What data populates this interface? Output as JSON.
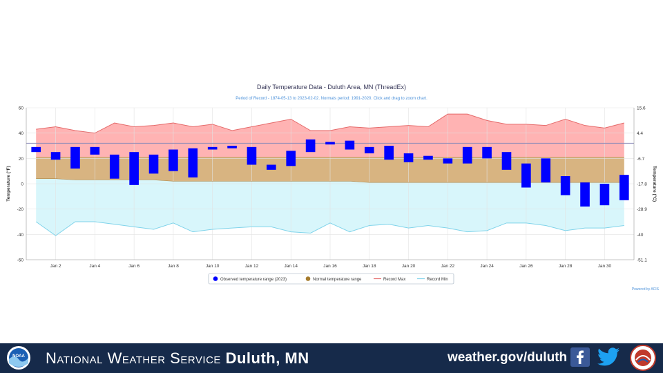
{
  "colors": {
    "observed": "#0000ff",
    "normal_fill": "#d8b481",
    "record_max_fill": "#ffb3b3",
    "record_max_line": "#e56a6a",
    "record_min_fill": "#d8f6fb",
    "record_min_line": "#7fd3ea",
    "normal_marker": "#a67c2e",
    "footer_bg": "#162a4a"
  },
  "chart_data": {
    "type": "bar",
    "title": "Daily Temperature Data - Duluth Area, MN (ThreadEx)",
    "subtitle": "Period of Record - 1874-05-13 to 2023-02-02. Normals period: 1991-2020. Click and drag to zoom chart.",
    "ylabel": "Temperature (°F)",
    "ylabel_right": "Temperature (°C)",
    "ylim": [
      -60,
      60
    ],
    "y_ticks": [
      60,
      40,
      20,
      0,
      -20,
      -40,
      -60
    ],
    "y_ticks_right": [
      "15.6",
      "4.4",
      "-6.7",
      "-17.8",
      "-28.9",
      "-40",
      "-51.1"
    ],
    "x_ticks": [
      "Jan 2",
      "Jan 4",
      "Jan 6",
      "Jan 8",
      "Jan 10",
      "Jan 12",
      "Jan 14",
      "Jan 16",
      "Jan 18",
      "Jan 20",
      "Jan 22",
      "Jan 24",
      "Jan 26",
      "Jan 28",
      "Jan 30"
    ],
    "x_tick_days": [
      2,
      4,
      6,
      8,
      10,
      12,
      14,
      16,
      18,
      20,
      22,
      24,
      26,
      28,
      30
    ],
    "days": [
      1,
      2,
      3,
      4,
      5,
      6,
      7,
      8,
      9,
      10,
      11,
      12,
      13,
      14,
      15,
      16,
      17,
      18,
      19,
      20,
      21,
      22,
      23,
      24,
      25,
      26,
      27,
      28,
      29,
      30,
      31
    ],
    "observed_high": [
      29,
      25,
      29,
      29,
      23,
      25,
      23,
      27,
      28,
      29,
      30,
      29,
      15,
      26,
      35,
      33,
      34,
      29,
      30,
      24,
      22,
      20,
      29,
      29,
      25,
      16,
      20,
      6,
      1,
      0,
      7
    ],
    "observed_low": [
      25,
      19,
      12,
      23,
      4,
      -1,
      8,
      10,
      5,
      27,
      28,
      15,
      11,
      14,
      25,
      31,
      27,
      24,
      19,
      17,
      19,
      16,
      16,
      20,
      11,
      -3,
      1,
      -9,
      -18,
      -17,
      -13
    ],
    "normal_high": [
      21,
      21,
      21,
      21,
      21,
      21,
      21,
      21,
      21,
      21,
      21,
      21,
      21,
      21,
      21,
      21,
      21,
      21,
      21,
      21,
      21,
      21,
      21,
      21,
      21,
      21,
      21,
      21,
      21,
      21,
      21
    ],
    "normal_low": [
      4,
      4,
      3,
      3,
      3,
      3,
      3,
      2,
      2,
      2,
      2,
      2,
      2,
      2,
      2,
      2,
      2,
      1,
      1,
      1,
      1,
      1,
      1,
      1,
      1,
      1,
      1,
      1,
      1,
      1,
      1
    ],
    "record_max": [
      43,
      45,
      42,
      40,
      48,
      45,
      46,
      48,
      45,
      47,
      42,
      45,
      48,
      51,
      42,
      42,
      45,
      44,
      45,
      46,
      45,
      55,
      55,
      50,
      47,
      47,
      46,
      51,
      46,
      44,
      48
    ],
    "record_min": [
      -30,
      -41,
      -30,
      -30,
      -32,
      -34,
      -36,
      -31,
      -38,
      -36,
      -35,
      -34,
      -34,
      -38,
      -39,
      -31,
      -38,
      -33,
      -32,
      -35,
      -33,
      -35,
      -38,
      -37,
      -31,
      -31,
      -33,
      -37,
      -35,
      -35,
      -33
    ],
    "legend": [
      {
        "label": "Observed temperature range (2023)",
        "color": "#0000ff"
      },
      {
        "label": "Normal temperature range",
        "color": "#a67c2e"
      },
      {
        "label": "Record Max",
        "color": "#e56a6a"
      },
      {
        "label": "Record Min",
        "color": "#7fd3ea"
      }
    ],
    "legend_position": "bottom",
    "credit": "Powered by ACIS",
    "grid": true
  },
  "footer": {
    "org_caps": "National Weather Service",
    "org_bold": "Duluth, MN",
    "url": "weather.gov/duluth"
  }
}
